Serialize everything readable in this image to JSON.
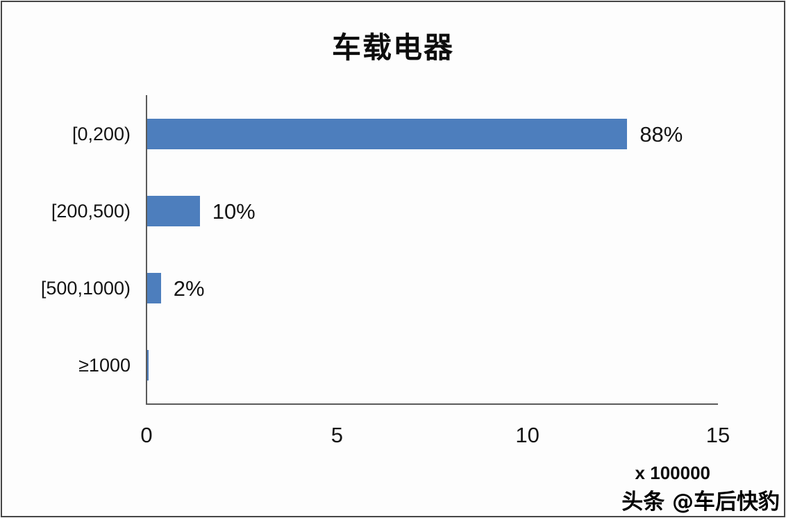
{
  "chart_data": {
    "type": "bar",
    "orientation": "horizontal",
    "title": "车载电器",
    "categories": [
      "[0,200)",
      "[200,500)",
      "[500,1000)",
      "≥1000"
    ],
    "values": [
      12.6,
      1.38,
      0.36,
      0.04
    ],
    "value_labels": [
      "88%",
      "10%",
      "2%",
      ""
    ],
    "x_ticks": [
      0,
      5,
      10,
      15
    ],
    "xlim": [
      0,
      15
    ],
    "xlabel": "x 100000",
    "ylabel": "",
    "grid": false,
    "legend": false,
    "bar_color": "#4d7ebd"
  },
  "watermark": {
    "text": "头条 @车后快豹"
  }
}
